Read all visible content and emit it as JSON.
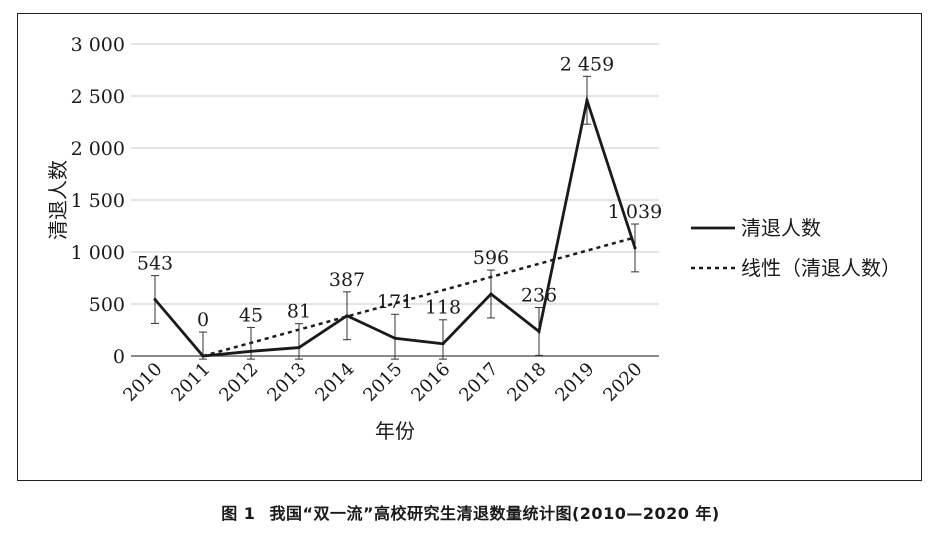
{
  "chart_data": {
    "type": "line",
    "categories": [
      "2010",
      "2011",
      "2012",
      "2013",
      "2014",
      "2015",
      "2016",
      "2017",
      "2018",
      "2019",
      "2020"
    ],
    "series": [
      {
        "name": "清退人数",
        "values": [
          543,
          0,
          45,
          81,
          387,
          171,
          118,
          596,
          236,
          2459,
          1039
        ],
        "value_labels": [
          "543",
          "0",
          "45",
          "81",
          "387",
          "171",
          "118",
          "596",
          "236",
          "2 459",
          "1 039"
        ],
        "error_bar": 230,
        "color": "#1a1a1a",
        "style": "solid"
      },
      {
        "name": "线性（清退人数）",
        "type": "trendline",
        "from_category": "2011",
        "start": 0,
        "end": 1140,
        "color": "#1a1a1a",
        "style": "dashed"
      }
    ],
    "xlabel": "年份",
    "ylabel": "清退人数",
    "ylim": [
      0,
      3000
    ],
    "yticks": [
      0,
      500,
      1000,
      1500,
      2000,
      2500,
      3000
    ],
    "ytick_labels": [
      "0",
      "500",
      "1 000",
      "1 500",
      "2 000",
      "2 500",
      "3 000"
    ],
    "grid": true,
    "legend": "right"
  },
  "caption": {
    "figure_no": "图 1",
    "text": "我国“双一流”高校研究生清退数量统计图(2010—2020 年)"
  }
}
